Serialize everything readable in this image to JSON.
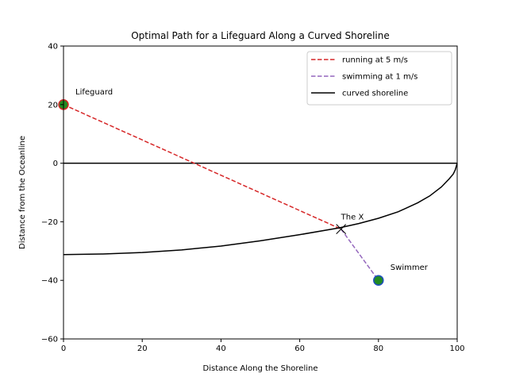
{
  "chart_data": {
    "type": "line",
    "title": "Optimal Path for a Lifeguard Along a Curved Shoreline",
    "xlabel": "Distance Along the Shoreline",
    "ylabel": "Distance from the Oceanline",
    "xlim": [
      0,
      100
    ],
    "ylim": [
      -60,
      40
    ],
    "xticks": [
      0,
      20,
      40,
      60,
      80,
      100
    ],
    "yticks": [
      -60,
      -40,
      -20,
      0,
      20,
      40
    ],
    "grid": false,
    "legend_position": "top-right",
    "series": [
      {
        "name": "running at 5 m/s",
        "color": "#d62728",
        "style": "dashed",
        "x": [
          0,
          70.5
        ],
        "y": [
          20,
          -22.5
        ]
      },
      {
        "name": "swimming at 1 m/s",
        "color": "#9467bd",
        "style": "dashed",
        "x": [
          70.5,
          80
        ],
        "y": [
          -22.5,
          -40
        ]
      },
      {
        "name": "curved shoreline",
        "color": "#000000",
        "style": "solid",
        "x": [
          0,
          10,
          20,
          30,
          40,
          50,
          60,
          70,
          75,
          80,
          85,
          90,
          93,
          96,
          98,
          99,
          99.5,
          100
        ],
        "y": [
          -31.2,
          -31.0,
          -30.5,
          -29.6,
          -28.3,
          -26.5,
          -24.4,
          -22.1,
          -20.6,
          -18.8,
          -16.6,
          -13.5,
          -11.2,
          -8.1,
          -5.3,
          -3.7,
          -2.3,
          0
        ]
      }
    ],
    "hline": {
      "y": 0,
      "color": "#000000"
    },
    "points": [
      {
        "label": "Lifeguard",
        "x": 0,
        "y": 20,
        "fill": "#228b22",
        "edge": "#d62728"
      },
      {
        "label": "Swimmer",
        "x": 80,
        "y": -40,
        "fill": "#228b22",
        "edge": "#1f4fbf"
      }
    ],
    "cross": {
      "label": "The X",
      "x": 70.5,
      "y": -22.5
    }
  }
}
